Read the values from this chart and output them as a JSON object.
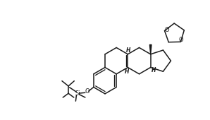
{
  "bg_color": "#ffffff",
  "line_color": "#1a1a1a",
  "lw": 1.1,
  "fig_width": 2.98,
  "fig_height": 1.7,
  "dpi": 100,
  "xlim": [
    -0.5,
    10.5
  ],
  "ylim": [
    -0.3,
    6.2
  ]
}
